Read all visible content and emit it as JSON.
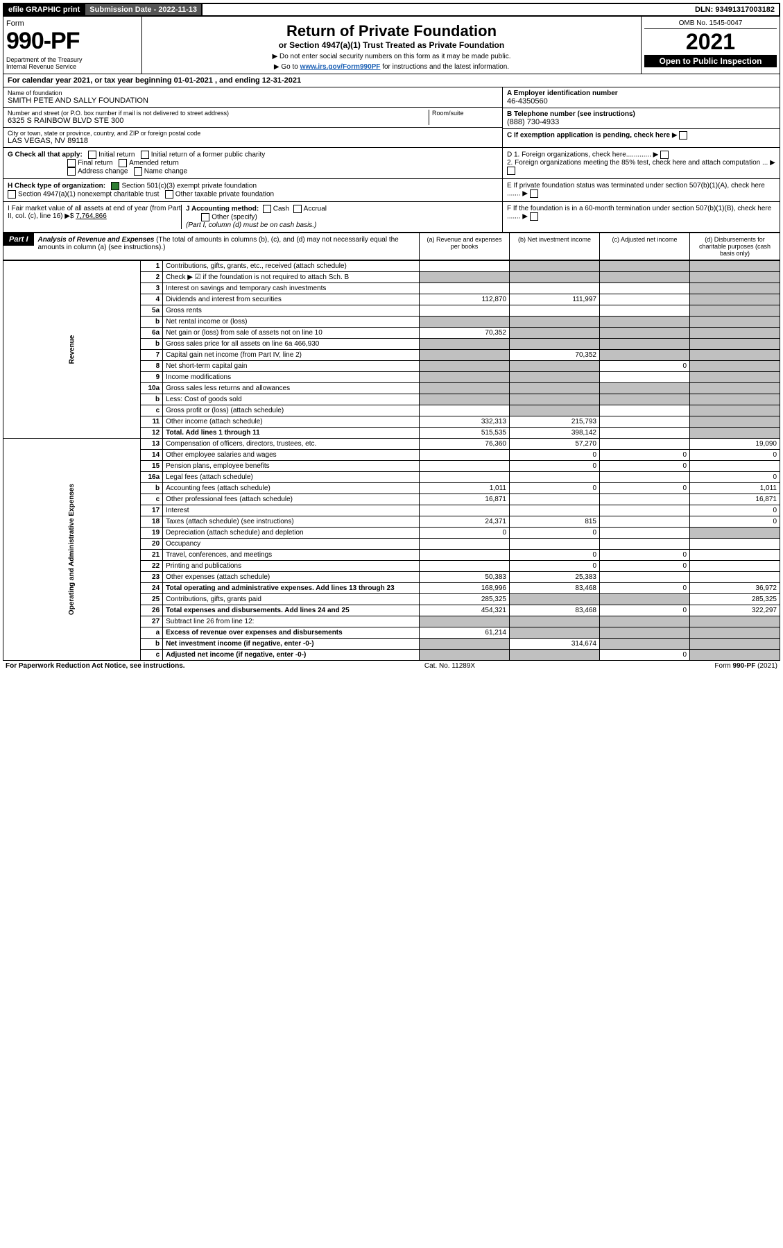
{
  "topbar": {
    "efile": "efile GRAPHIC print",
    "subm_label": "Submission Date - 2022-11-13",
    "dln": "DLN: 93491317003182"
  },
  "header": {
    "form_label": "Form",
    "form_no": "990-PF",
    "dept": "Department of the Treasury\nInternal Revenue Service",
    "title": "Return of Private Foundation",
    "subtitle": "or Section 4947(a)(1) Trust Treated as Private Foundation",
    "inst1": "▶ Do not enter social security numbers on this form as it may be made public.",
    "inst2_pre": "▶ Go to ",
    "inst2_link": "www.irs.gov/Form990PF",
    "inst2_post": " for instructions and the latest information.",
    "omb": "OMB No. 1545-0047",
    "year": "2021",
    "open": "Open to Public Inspection"
  },
  "calyear": "For calendar year 2021, or tax year beginning 01-01-2021                  , and ending 12-31-2021",
  "name_block": {
    "lbl": "Name of foundation",
    "val": "SMITH PETE AND SALLY FOUNDATION"
  },
  "addr_block": {
    "lbl": "Number and street (or P.O. box number if mail is not delivered to street address)",
    "val": "6325 S RAINBOW BLVD STE 300",
    "room_lbl": "Room/suite"
  },
  "city_block": {
    "lbl": "City or town, state or province, country, and ZIP or foreign postal code",
    "val": "LAS VEGAS, NV  89118"
  },
  "ein": {
    "lbl": "A Employer identification number",
    "val": "46-4350560"
  },
  "phone": {
    "lbl": "B Telephone number (see instructions)",
    "val": "(888) 730-4933"
  },
  "exemption": "C If exemption application is pending, check here",
  "d1": "D 1. Foreign organizations, check here.............",
  "d2": "2. Foreign organizations meeting the 85% test, check here and attach computation ...",
  "e_text": "E If private foundation status was terminated under section 507(b)(1)(A), check here .......",
  "f_text": "F If the foundation is in a 60-month termination under section 507(b)(1)(B), check here .......",
  "g_label": "G Check all that apply:",
  "g_opts": [
    "Initial return",
    "Initial return of a former public charity",
    "Final return",
    "Amended return",
    "Address change",
    "Name change"
  ],
  "h_label": "H Check type of organization:",
  "h_opt1": "Section 501(c)(3) exempt private foundation",
  "h_opt2": "Section 4947(a)(1) nonexempt charitable trust",
  "h_opt3": "Other taxable private foundation",
  "i_text": "I Fair market value of all assets at end of year (from Part II, col. (c), line 16) ▶$ ",
  "i_val": "7,764,866",
  "j_text": "J Accounting method:",
  "j_cash": "Cash",
  "j_accrual": "Accrual",
  "j_other": "Other (specify)",
  "j_note": "(Part I, column (d) must be on cash basis.)",
  "part1": {
    "label": "Part I",
    "title": "Analysis of Revenue and Expenses",
    "note": "(The total of amounts in columns (b), (c), and (d) may not necessarily equal the amounts in column (a) (see instructions).)",
    "col_a": "(a) Revenue and expenses per books",
    "col_b": "(b) Net investment income",
    "col_c": "(c) Adjusted net income",
    "col_d": "(d) Disbursements for charitable purposes (cash basis only)"
  },
  "side_labels": {
    "revenue": "Revenue",
    "expenses": "Operating and Administrative Expenses"
  },
  "lines": [
    {
      "n": "1",
      "d": "Contributions, gifts, grants, etc., received (attach schedule)",
      "a": "",
      "b": "g",
      "c": "g",
      "dcol": "g"
    },
    {
      "n": "2",
      "d": "Check ▶ ☑ if the foundation is not required to attach Sch. B",
      "a": "g",
      "b": "g",
      "c": "g",
      "dcol": "g"
    },
    {
      "n": "3",
      "d": "Interest on savings and temporary cash investments",
      "a": "",
      "b": "",
      "c": "",
      "dcol": "g"
    },
    {
      "n": "4",
      "d": "Dividends and interest from securities",
      "a": "112,870",
      "b": "111,997",
      "c": "",
      "dcol": "g"
    },
    {
      "n": "5a",
      "d": "Gross rents",
      "a": "",
      "b": "",
      "c": "",
      "dcol": "g"
    },
    {
      "n": "b",
      "d": "Net rental income or (loss)",
      "a": "g",
      "b": "g",
      "c": "g",
      "dcol": "g"
    },
    {
      "n": "6a",
      "d": "Net gain or (loss) from sale of assets not on line 10",
      "a": "70,352",
      "b": "g",
      "c": "g",
      "dcol": "g"
    },
    {
      "n": "b",
      "d": "Gross sales price for all assets on line 6a         466,930",
      "a": "g",
      "b": "g",
      "c": "g",
      "dcol": "g"
    },
    {
      "n": "7",
      "d": "Capital gain net income (from Part IV, line 2)",
      "a": "g",
      "b": "70,352",
      "c": "g",
      "dcol": "g"
    },
    {
      "n": "8",
      "d": "Net short-term capital gain",
      "a": "g",
      "b": "g",
      "c": "0",
      "dcol": "g"
    },
    {
      "n": "9",
      "d": "Income modifications",
      "a": "g",
      "b": "g",
      "c": "",
      "dcol": "g"
    },
    {
      "n": "10a",
      "d": "Gross sales less returns and allowances",
      "a": "g",
      "b": "g",
      "c": "g",
      "dcol": "g"
    },
    {
      "n": "b",
      "d": "Less: Cost of goods sold",
      "a": "g",
      "b": "g",
      "c": "g",
      "dcol": "g"
    },
    {
      "n": "c",
      "d": "Gross profit or (loss) (attach schedule)",
      "a": "",
      "b": "g",
      "c": "",
      "dcol": "g"
    },
    {
      "n": "11",
      "d": "Other income (attach schedule)",
      "a": "332,313",
      "b": "215,793",
      "c": "",
      "dcol": "g"
    },
    {
      "n": "12",
      "d": "Total. Add lines 1 through 11",
      "a": "515,535",
      "b": "398,142",
      "c": "",
      "dcol": "g",
      "bold": true
    },
    {
      "n": "13",
      "d": "Compensation of officers, directors, trustees, etc.",
      "a": "76,360",
      "b": "57,270",
      "c": "",
      "dcol": "19,090"
    },
    {
      "n": "14",
      "d": "Other employee salaries and wages",
      "a": "",
      "b": "0",
      "c": "0",
      "dcol": "0"
    },
    {
      "n": "15",
      "d": "Pension plans, employee benefits",
      "a": "",
      "b": "0",
      "c": "0",
      "dcol": ""
    },
    {
      "n": "16a",
      "d": "Legal fees (attach schedule)",
      "a": "",
      "b": "",
      "c": "",
      "dcol": "0"
    },
    {
      "n": "b",
      "d": "Accounting fees (attach schedule)",
      "a": "1,011",
      "b": "0",
      "c": "0",
      "dcol": "1,011"
    },
    {
      "n": "c",
      "d": "Other professional fees (attach schedule)",
      "a": "16,871",
      "b": "",
      "c": "",
      "dcol": "16,871"
    },
    {
      "n": "17",
      "d": "Interest",
      "a": "",
      "b": "",
      "c": "",
      "dcol": "0"
    },
    {
      "n": "18",
      "d": "Taxes (attach schedule) (see instructions)",
      "a": "24,371",
      "b": "815",
      "c": "",
      "dcol": "0"
    },
    {
      "n": "19",
      "d": "Depreciation (attach schedule) and depletion",
      "a": "0",
      "b": "0",
      "c": "",
      "dcol": "g"
    },
    {
      "n": "20",
      "d": "Occupancy",
      "a": "",
      "b": "",
      "c": "",
      "dcol": ""
    },
    {
      "n": "21",
      "d": "Travel, conferences, and meetings",
      "a": "",
      "b": "0",
      "c": "0",
      "dcol": ""
    },
    {
      "n": "22",
      "d": "Printing and publications",
      "a": "",
      "b": "0",
      "c": "0",
      "dcol": ""
    },
    {
      "n": "23",
      "d": "Other expenses (attach schedule)",
      "a": "50,383",
      "b": "25,383",
      "c": "",
      "dcol": ""
    },
    {
      "n": "24",
      "d": "Total operating and administrative expenses. Add lines 13 through 23",
      "a": "168,996",
      "b": "83,468",
      "c": "0",
      "dcol": "36,972",
      "bold": true
    },
    {
      "n": "25",
      "d": "Contributions, gifts, grants paid",
      "a": "285,325",
      "b": "g",
      "c": "g",
      "dcol": "285,325"
    },
    {
      "n": "26",
      "d": "Total expenses and disbursements. Add lines 24 and 25",
      "a": "454,321",
      "b": "83,468",
      "c": "0",
      "dcol": "322,297",
      "bold": true
    },
    {
      "n": "27",
      "d": "Subtract line 26 from line 12:",
      "a": "g",
      "b": "g",
      "c": "g",
      "dcol": "g"
    },
    {
      "n": "a",
      "d": "Excess of revenue over expenses and disbursements",
      "a": "61,214",
      "b": "g",
      "c": "g",
      "dcol": "g",
      "bold": true
    },
    {
      "n": "b",
      "d": "Net investment income (if negative, enter -0-)",
      "a": "g",
      "b": "314,674",
      "c": "g",
      "dcol": "g",
      "bold": true
    },
    {
      "n": "c",
      "d": "Adjusted net income (if negative, enter -0-)",
      "a": "g",
      "b": "g",
      "c": "0",
      "dcol": "g",
      "bold": true
    }
  ],
  "footer": {
    "left": "For Paperwork Reduction Act Notice, see instructions.",
    "mid": "Cat. No. 11289X",
    "right": "Form 990-PF (2021)"
  }
}
